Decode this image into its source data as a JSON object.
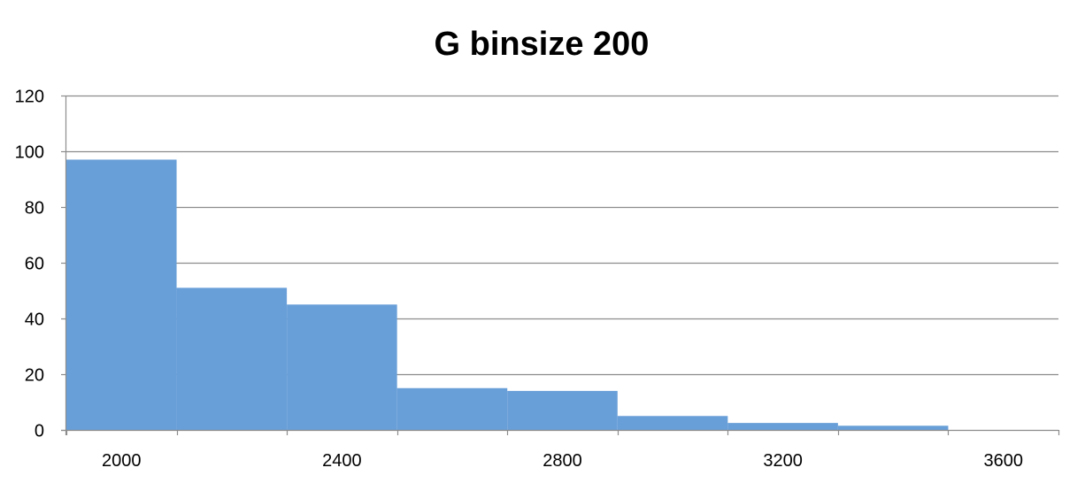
{
  "chart_data": {
    "type": "bar",
    "title": "G binsize 200",
    "xlabel": "",
    "ylabel": "",
    "bin_edges": [
      1900,
      2100,
      2300,
      2500,
      2700,
      2900,
      3100,
      3300,
      3500,
      3700,
      3900
    ],
    "values": [
      97,
      51,
      45,
      15,
      14,
      5,
      2.5,
      1.5,
      0,
      0
    ],
    "xlim": [
      1900,
      3700
    ],
    "ylim": [
      0,
      120
    ],
    "x_tick_labels": [
      "2000",
      "2400",
      "2800",
      "3200",
      "3600"
    ],
    "x_tick_values": [
      2000,
      2400,
      2800,
      3200,
      3600
    ],
    "y_tick_labels": [
      "0",
      "20",
      "40",
      "60",
      "80",
      "100",
      "120"
    ],
    "y_tick_values": [
      0,
      20,
      40,
      60,
      80,
      100,
      120
    ],
    "grid": true,
    "legend": "none",
    "colors": {
      "bar": "#699fd8",
      "grid": "#8c8c8c",
      "axis": "#8c8c8c",
      "text": "#000000"
    }
  }
}
